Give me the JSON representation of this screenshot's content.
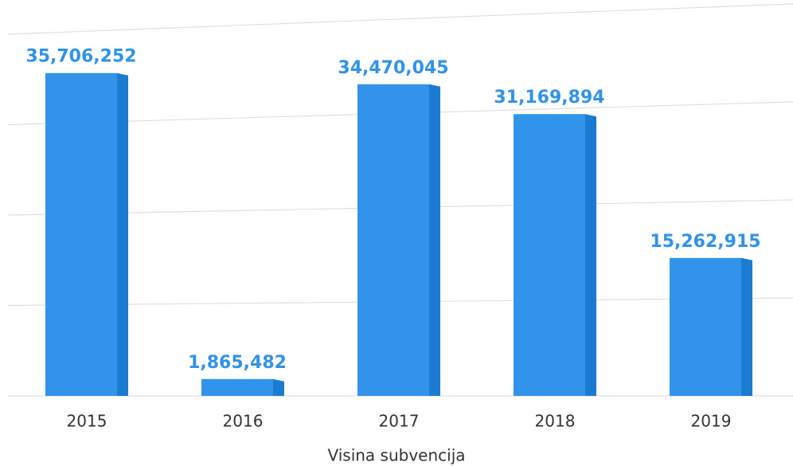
{
  "chart_data": {
    "type": "bar",
    "categories": [
      "2015",
      "2016",
      "2017",
      "2018",
      "2019"
    ],
    "values": [
      35706252,
      1865482,
      34470045,
      31169894,
      15262915
    ],
    "value_labels": [
      "35,706,252",
      "1,865,482",
      "34,470,045",
      "31,169,894",
      "15,262,915"
    ],
    "x_label": "Visina subvencija",
    "color": "#3194ea",
    "ylim": [
      0,
      40000000
    ],
    "yticks": [
      0,
      10000000,
      20000000,
      30000000,
      40000000
    ],
    "grid": true
  }
}
